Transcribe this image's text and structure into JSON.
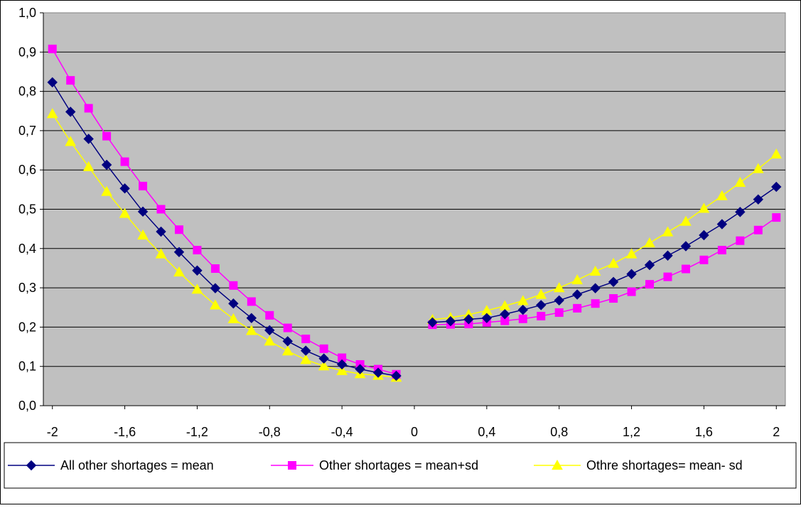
{
  "chart_data": {
    "type": "line",
    "title": "",
    "xlabel": "",
    "ylabel": "",
    "xlim": [
      -2.05,
      2.05
    ],
    "ylim": [
      0,
      1.0
    ],
    "x_ticks": [
      "-2",
      "-1,6",
      "-1,2",
      "-0,8",
      "-0,4",
      "0",
      "0,4",
      "0,8",
      "1,2",
      "1,6",
      "2"
    ],
    "y_ticks": [
      "0,0",
      "0,1",
      "0,2",
      "0,3",
      "0,4",
      "0,5",
      "0,6",
      "0,7",
      "0,8",
      "0,9",
      "1,0"
    ],
    "grid": "horizontal",
    "legend_position": "bottom",
    "series": [
      {
        "name": "All other shortages = mean",
        "color": "#000080",
        "marker": "diamond",
        "left": {
          "x": [
            -2.0,
            -1.9,
            -1.8,
            -1.7,
            -1.6,
            -1.5,
            -1.4,
            -1.3,
            -1.2,
            -1.1,
            -1.0,
            -0.9,
            -0.8,
            -0.7,
            -0.6,
            -0.5,
            -0.4,
            -0.3,
            -0.2,
            -0.1
          ],
          "y": [
            0.823,
            0.748,
            0.679,
            0.613,
            0.553,
            0.494,
            0.443,
            0.391,
            0.344,
            0.299,
            0.26,
            0.223,
            0.192,
            0.164,
            0.14,
            0.12,
            0.105,
            0.093,
            0.084,
            0.076
          ]
        },
        "right": {
          "x": [
            0.1,
            0.2,
            0.3,
            0.4,
            0.5,
            0.6,
            0.7,
            0.8,
            0.9,
            1.0,
            1.1,
            1.2,
            1.3,
            1.4,
            1.5,
            1.6,
            1.7,
            1.8,
            1.9,
            2.0
          ],
          "y": [
            0.212,
            0.215,
            0.22,
            0.223,
            0.233,
            0.244,
            0.256,
            0.268,
            0.283,
            0.299,
            0.315,
            0.335,
            0.358,
            0.382,
            0.406,
            0.434,
            0.462,
            0.493,
            0.525,
            0.557
          ]
        }
      },
      {
        "name": "Other shortages = mean+sd",
        "color": "#ff00ff",
        "marker": "square",
        "left": {
          "x": [
            -2.0,
            -1.9,
            -1.8,
            -1.7,
            -1.6,
            -1.5,
            -1.4,
            -1.3,
            -1.2,
            -1.1,
            -1.0,
            -0.9,
            -0.8,
            -0.7,
            -0.6,
            -0.5,
            -0.4,
            -0.3,
            -0.2,
            -0.1
          ],
          "y": [
            0.908,
            0.828,
            0.757,
            0.686,
            0.621,
            0.559,
            0.5,
            0.448,
            0.396,
            0.349,
            0.306,
            0.265,
            0.23,
            0.198,
            0.17,
            0.145,
            0.122,
            0.105,
            0.093,
            0.08
          ]
        },
        "right": {
          "x": [
            0.1,
            0.2,
            0.3,
            0.4,
            0.5,
            0.6,
            0.7,
            0.8,
            0.9,
            1.0,
            1.1,
            1.2,
            1.3,
            1.4,
            1.5,
            1.6,
            1.7,
            1.8,
            1.9,
            2.0
          ],
          "y": [
            0.206,
            0.207,
            0.208,
            0.212,
            0.216,
            0.221,
            0.228,
            0.237,
            0.248,
            0.26,
            0.273,
            0.29,
            0.309,
            0.328,
            0.348,
            0.371,
            0.396,
            0.42,
            0.447,
            0.479
          ]
        }
      },
      {
        "name": "Othre shortages= mean- sd",
        "color": "#ffff00",
        "marker": "triangle",
        "left": {
          "x": [
            -2.0,
            -1.9,
            -1.8,
            -1.7,
            -1.6,
            -1.5,
            -1.4,
            -1.3,
            -1.2,
            -1.1,
            -1.0,
            -0.9,
            -0.8,
            -0.7,
            -0.6,
            -0.5,
            -0.4,
            -0.3,
            -0.2,
            -0.1
          ],
          "y": [
            0.743,
            0.672,
            0.608,
            0.545,
            0.489,
            0.434,
            0.386,
            0.34,
            0.296,
            0.256,
            0.221,
            0.191,
            0.164,
            0.139,
            0.117,
            0.101,
            0.089,
            0.081,
            0.077,
            0.072
          ]
        },
        "right": {
          "x": [
            0.1,
            0.2,
            0.3,
            0.4,
            0.5,
            0.6,
            0.7,
            0.8,
            0.9,
            1.0,
            1.1,
            1.2,
            1.3,
            1.4,
            1.5,
            1.6,
            1.7,
            1.8,
            1.9,
            2.0
          ],
          "y": [
            0.219,
            0.224,
            0.232,
            0.242,
            0.254,
            0.267,
            0.283,
            0.3,
            0.32,
            0.342,
            0.362,
            0.386,
            0.414,
            0.442,
            0.469,
            0.502,
            0.534,
            0.568,
            0.603,
            0.64
          ]
        }
      }
    ]
  }
}
